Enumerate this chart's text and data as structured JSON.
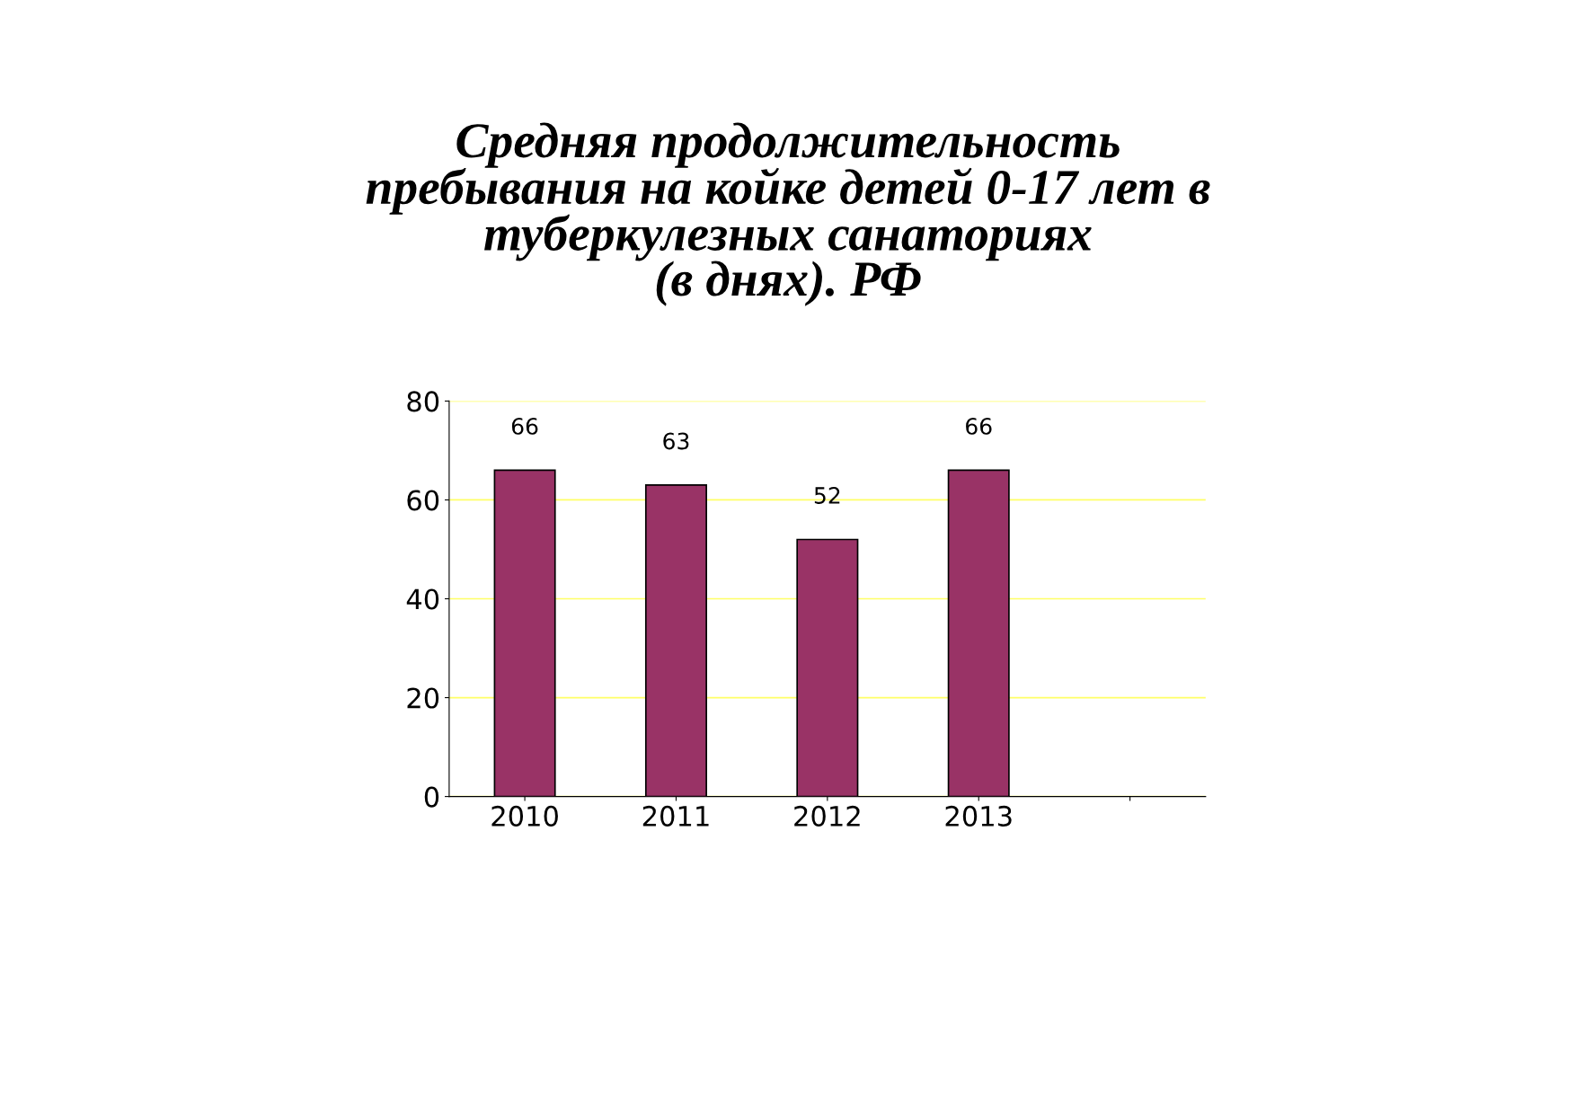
{
  "chart_data": {
    "type": "bar",
    "title": "Средняя продолжительность\nпребывания на койке детей 0-17 лет в\nтуберкулезных санаториях\n(в днях). РФ",
    "categories": [
      "2010",
      "2011",
      "2012",
      "2013",
      null
    ],
    "values": [
      66,
      63,
      52,
      66,
      null
    ],
    "color": "#993366",
    "ylim": [
      0,
      80
    ],
    "yticks": [
      0,
      20,
      40,
      60,
      80
    ],
    "grid": "y",
    "data_labels": true
  }
}
